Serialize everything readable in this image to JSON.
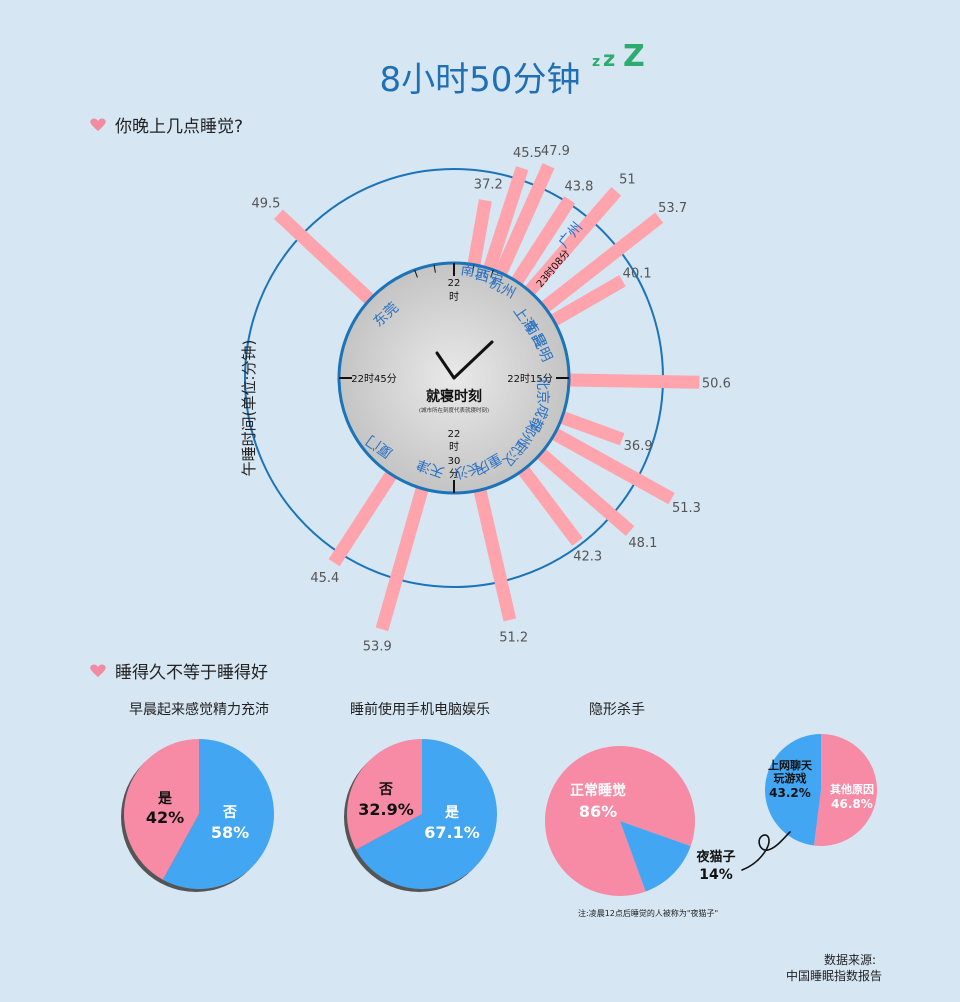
{
  "title": "8小时50分钟",
  "zzz": [
    "z",
    "z",
    "Z"
  ],
  "colors": {
    "background": "#d6e6f3",
    "title": "#1f6fb5",
    "zzz": "#2eab6e",
    "bar": "#ffa3ad",
    "ring": "#1b73b8",
    "pie_pink": "#f78aa4",
    "pie_blue": "#42a6f2",
    "city_label": "#2b72c4",
    "heart": "#f28aa3"
  },
  "section1": {
    "heading": "你晚上几点睡觉?"
  },
  "section2": {
    "heading": "睡得久不等于睡得好"
  },
  "chart_data": [
    {
      "type": "radial-bar",
      "ylabel": "午睡时间(单位:分钟)",
      "clock": {
        "title": "就寝时刻",
        "subtitle": "(城市所在刻度代表就寝时刻)",
        "ticks": [
          {
            "label": "22\n时"
          },
          {
            "label": "22时15分"
          },
          {
            "label": "22\n时\n30\n分"
          },
          {
            "label": "22时45分"
          }
        ],
        "special_label": "23时08分"
      },
      "city_labels": [
        "南京",
        "西宁",
        "杭州",
        "广州",
        "上海",
        "南昌",
        "昆明",
        "北京",
        "成都",
        "郑州",
        "武汉",
        "重庆",
        "长沙",
        "天津",
        "厦门",
        "东莞"
      ],
      "values": [
        37.2,
        45.5,
        47.9,
        43.8,
        51,
        53.7,
        40.1,
        50.6,
        36.9,
        51.3,
        48.1,
        42.3,
        51.2,
        53.9,
        45.4,
        49.5
      ]
    },
    {
      "type": "pie",
      "title": "早晨起来感觉精力充沛",
      "slices": [
        {
          "name": "是",
          "value": 42,
          "label": "42%"
        },
        {
          "name": "否",
          "value": 58,
          "label": "58%"
        }
      ]
    },
    {
      "type": "pie",
      "title": "睡前使用手机电脑娱乐",
      "slices": [
        {
          "name": "否",
          "value": 32.9,
          "label": "32.9%"
        },
        {
          "name": "是",
          "value": 67.1,
          "label": "67.1%"
        }
      ]
    },
    {
      "type": "pie",
      "title": "隐形杀手",
      "slices": [
        {
          "name": "正常睡觉",
          "value": 86,
          "label": "86%"
        },
        {
          "name": "夜猫子",
          "value": 14,
          "label": "14%"
        }
      ],
      "note": "注:凌晨12点后睡觉的人被称为\"夜猫子\""
    },
    {
      "type": "pie",
      "slices": [
        {
          "name": "上网聊天玩游戏",
          "value": 43.2,
          "label": "43.2%"
        },
        {
          "name": "其他原因",
          "value": 46.8,
          "label": "46.8%"
        }
      ]
    }
  ],
  "footer": {
    "line1": "数据来源:",
    "line2": "中国睡眠指数报告"
  }
}
